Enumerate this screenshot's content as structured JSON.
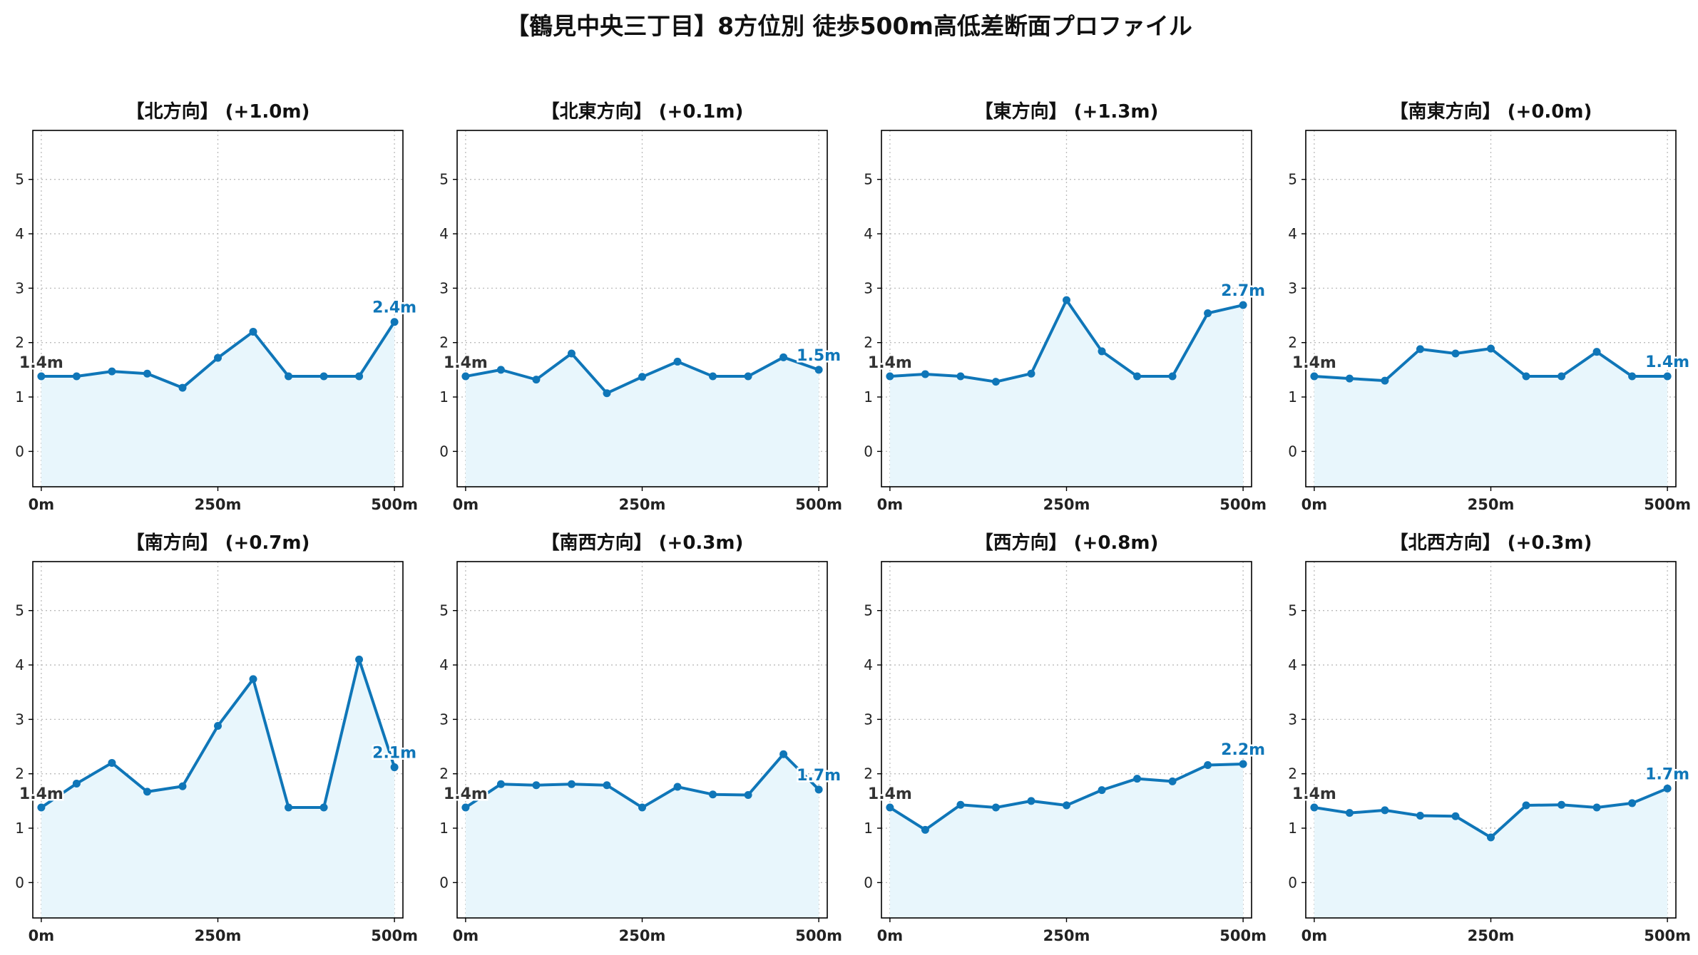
{
  "title": "【鶴見中央三丁目】8方位別 徒歩500m高低差断面プロファイル",
  "colors": {
    "line": "#0f76b8",
    "fill": "#e8f6fc",
    "grid": "#bbbbbb",
    "start_label": "#333333",
    "end_label": "#0f76b8"
  },
  "chart_data": [
    {
      "type": "area",
      "title": "【北方向】 (+1.0m)",
      "x": [
        0,
        50,
        100,
        150,
        200,
        250,
        300,
        350,
        400,
        450,
        500
      ],
      "y": [
        1.38,
        1.38,
        1.47,
        1.43,
        1.17,
        1.72,
        2.2,
        1.38,
        1.38,
        1.38,
        2.38
      ],
      "start_label": "1.4m",
      "end_label": "2.4m",
      "xticks": [
        0,
        250,
        500
      ],
      "xtick_labels": [
        "0m",
        "250m",
        "500m"
      ],
      "yticks": [
        0,
        1,
        2,
        3,
        4,
        5
      ],
      "ytick_labels": [
        "0",
        "1",
        "2",
        "3",
        "4",
        "5"
      ],
      "xlim": [
        -12,
        512
      ],
      "ylim": [
        -0.65,
        5.9
      ],
      "grid": true
    },
    {
      "type": "area",
      "title": "【北東方向】 (+0.1m)",
      "x": [
        0,
        50,
        100,
        150,
        200,
        250,
        300,
        350,
        400,
        450,
        500
      ],
      "y": [
        1.38,
        1.5,
        1.32,
        1.8,
        1.07,
        1.37,
        1.65,
        1.38,
        1.38,
        1.73,
        1.5
      ],
      "start_label": "1.4m",
      "end_label": "1.5m",
      "xticks": [
        0,
        250,
        500
      ],
      "xtick_labels": [
        "0m",
        "250m",
        "500m"
      ],
      "yticks": [
        0,
        1,
        2,
        3,
        4,
        5
      ],
      "ytick_labels": [
        "0",
        "1",
        "2",
        "3",
        "4",
        "5"
      ],
      "xlim": [
        -12,
        512
      ],
      "ylim": [
        -0.65,
        5.9
      ],
      "grid": true
    },
    {
      "type": "area",
      "title": "【東方向】 (+1.3m)",
      "x": [
        0,
        50,
        100,
        150,
        200,
        250,
        300,
        350,
        400,
        450,
        500
      ],
      "y": [
        1.38,
        1.42,
        1.38,
        1.28,
        1.43,
        2.78,
        1.84,
        1.38,
        1.38,
        2.54,
        2.69
      ],
      "start_label": "1.4m",
      "end_label": "2.7m",
      "xticks": [
        0,
        250,
        500
      ],
      "xtick_labels": [
        "0m",
        "250m",
        "500m"
      ],
      "yticks": [
        0,
        1,
        2,
        3,
        4,
        5
      ],
      "ytick_labels": [
        "0",
        "1",
        "2",
        "3",
        "4",
        "5"
      ],
      "xlim": [
        -12,
        512
      ],
      "ylim": [
        -0.65,
        5.9
      ],
      "grid": true
    },
    {
      "type": "area",
      "title": "【南東方向】 (+0.0m)",
      "x": [
        0,
        50,
        100,
        150,
        200,
        250,
        300,
        350,
        400,
        450,
        500
      ],
      "y": [
        1.38,
        1.34,
        1.3,
        1.88,
        1.8,
        1.89,
        1.38,
        1.38,
        1.83,
        1.38,
        1.38
      ],
      "start_label": "1.4m",
      "end_label": "1.4m",
      "xticks": [
        0,
        250,
        500
      ],
      "xtick_labels": [
        "0m",
        "250m",
        "500m"
      ],
      "yticks": [
        0,
        1,
        2,
        3,
        4,
        5
      ],
      "ytick_labels": [
        "0",
        "1",
        "2",
        "3",
        "4",
        "5"
      ],
      "xlim": [
        -12,
        512
      ],
      "ylim": [
        -0.65,
        5.9
      ],
      "grid": true
    },
    {
      "type": "area",
      "title": "【南方向】 (+0.7m)",
      "x": [
        0,
        50,
        100,
        150,
        200,
        250,
        300,
        350,
        400,
        450,
        500
      ],
      "y": [
        1.38,
        1.82,
        2.2,
        1.67,
        1.77,
        2.88,
        3.74,
        1.38,
        1.38,
        4.1,
        2.12
      ],
      "start_label": "1.4m",
      "end_label": "2.1m",
      "xticks": [
        0,
        250,
        500
      ],
      "xtick_labels": [
        "0m",
        "250m",
        "500m"
      ],
      "yticks": [
        0,
        1,
        2,
        3,
        4,
        5
      ],
      "ytick_labels": [
        "0",
        "1",
        "2",
        "3",
        "4",
        "5"
      ],
      "xlim": [
        -12,
        512
      ],
      "ylim": [
        -0.65,
        5.9
      ],
      "grid": true
    },
    {
      "type": "area",
      "title": "【南西方向】 (+0.3m)",
      "x": [
        0,
        50,
        100,
        150,
        200,
        250,
        300,
        350,
        400,
        450,
        500
      ],
      "y": [
        1.38,
        1.81,
        1.79,
        1.81,
        1.79,
        1.38,
        1.76,
        1.62,
        1.61,
        2.36,
        1.71
      ],
      "start_label": "1.4m",
      "end_label": "1.7m",
      "xticks": [
        0,
        250,
        500
      ],
      "xtick_labels": [
        "0m",
        "250m",
        "500m"
      ],
      "yticks": [
        0,
        1,
        2,
        3,
        4,
        5
      ],
      "ytick_labels": [
        "0",
        "1",
        "2",
        "3",
        "4",
        "5"
      ],
      "xlim": [
        -12,
        512
      ],
      "ylim": [
        -0.65,
        5.9
      ],
      "grid": true
    },
    {
      "type": "area",
      "title": "【西方向】 (+0.8m)",
      "x": [
        0,
        50,
        100,
        150,
        200,
        250,
        300,
        350,
        400,
        450,
        500
      ],
      "y": [
        1.38,
        0.97,
        1.43,
        1.38,
        1.5,
        1.42,
        1.7,
        1.91,
        1.86,
        2.16,
        2.18
      ],
      "start_label": "1.4m",
      "end_label": "2.2m",
      "xticks": [
        0,
        250,
        500
      ],
      "xtick_labels": [
        "0m",
        "250m",
        "500m"
      ],
      "yticks": [
        0,
        1,
        2,
        3,
        4,
        5
      ],
      "ytick_labels": [
        "0",
        "1",
        "2",
        "3",
        "4",
        "5"
      ],
      "xlim": [
        -12,
        512
      ],
      "ylim": [
        -0.65,
        5.9
      ],
      "grid": true
    },
    {
      "type": "area",
      "title": "【北西方向】 (+0.3m)",
      "x": [
        0,
        50,
        100,
        150,
        200,
        250,
        300,
        350,
        400,
        450,
        500
      ],
      "y": [
        1.38,
        1.28,
        1.33,
        1.23,
        1.22,
        0.83,
        1.42,
        1.43,
        1.38,
        1.46,
        1.73
      ],
      "start_label": "1.4m",
      "end_label": "1.7m",
      "xticks": [
        0,
        250,
        500
      ],
      "xtick_labels": [
        "0m",
        "250m",
        "500m"
      ],
      "yticks": [
        0,
        1,
        2,
        3,
        4,
        5
      ],
      "ytick_labels": [
        "0",
        "1",
        "2",
        "3",
        "4",
        "5"
      ],
      "xlim": [
        -12,
        512
      ],
      "ylim": [
        -0.65,
        5.9
      ],
      "grid": true
    }
  ]
}
